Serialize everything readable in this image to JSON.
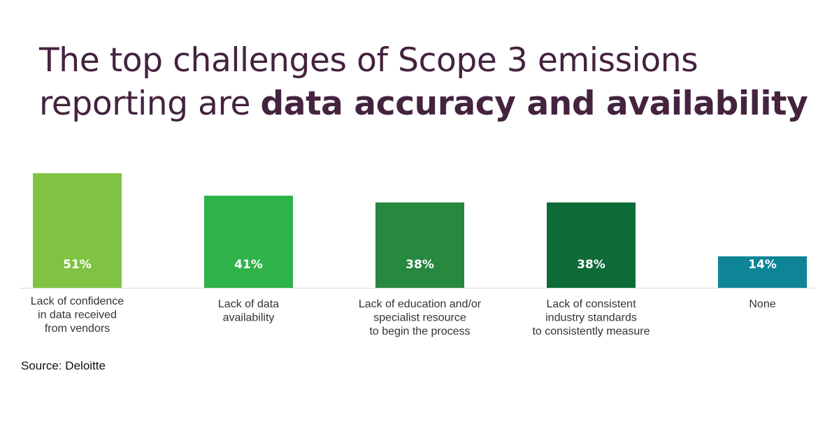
{
  "title": {
    "line1": "The top challenges of Scope 3 emissions",
    "line2_prefix": "reporting are ",
    "line2_bold": "data accuracy and availability"
  },
  "source": "Source: Deloitte",
  "chart_data": {
    "type": "bar",
    "title": "The top challenges of Scope 3 emissions reporting are data accuracy and availability",
    "categories": [
      [
        "Lack of confidence",
        "in data received",
        "from vendors"
      ],
      [
        "Lack of data",
        "availability"
      ],
      [
        "Lack of education and/or",
        "specialist resource",
        "to begin the process"
      ],
      [
        "Lack of consistent",
        "industry standards",
        "to consistently measure"
      ],
      [
        "None"
      ]
    ],
    "values": [
      51,
      41,
      38,
      38,
      14
    ],
    "value_labels": [
      "51%",
      "41%",
      "38%",
      "38%",
      "14%"
    ],
    "colors": [
      "#80c342",
      "#2db34a",
      "#27883f",
      "#0d6b38",
      "#0e8596"
    ],
    "ylim": [
      0,
      51
    ],
    "grid": false,
    "legend": "none"
  }
}
